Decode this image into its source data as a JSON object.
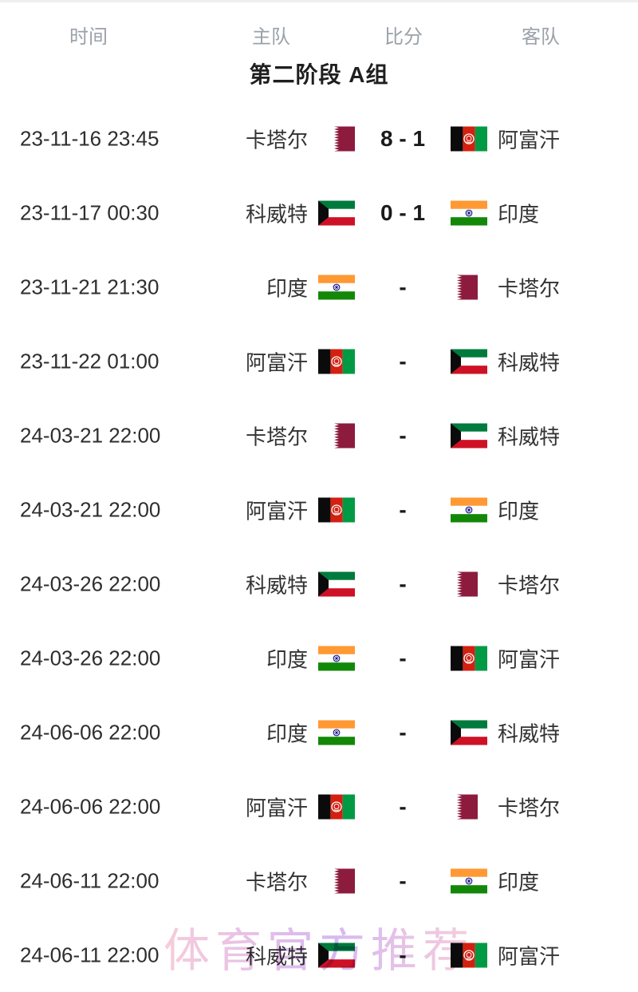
{
  "header": {
    "time": "时间",
    "home": "主队",
    "score": "比分",
    "away": "客队"
  },
  "stage_title": "第二阶段 A组",
  "watermark": "体育官方推荐",
  "matches": [
    {
      "time": "23-11-16 23:45",
      "home": "卡塔尔",
      "home_flag": "qatar",
      "score": "8 - 1",
      "away": "阿富汗",
      "away_flag": "afghanistan"
    },
    {
      "time": "23-11-17 00:30",
      "home": "科威特",
      "home_flag": "kuwait",
      "score": "0 - 1",
      "away": "印度",
      "away_flag": "india"
    },
    {
      "time": "23-11-21 21:30",
      "home": "印度",
      "home_flag": "india",
      "score": "-",
      "away": "卡塔尔",
      "away_flag": "qatar"
    },
    {
      "time": "23-11-22 01:00",
      "home": "阿富汗",
      "home_flag": "afghanistan",
      "score": "-",
      "away": "科威特",
      "away_flag": "kuwait"
    },
    {
      "time": "24-03-21 22:00",
      "home": "卡塔尔",
      "home_flag": "qatar",
      "score": "-",
      "away": "科威特",
      "away_flag": "kuwait"
    },
    {
      "time": "24-03-21 22:00",
      "home": "阿富汗",
      "home_flag": "afghanistan",
      "score": "-",
      "away": "印度",
      "away_flag": "india"
    },
    {
      "time": "24-03-26 22:00",
      "home": "科威特",
      "home_flag": "kuwait",
      "score": "-",
      "away": "卡塔尔",
      "away_flag": "qatar"
    },
    {
      "time": "24-03-26 22:00",
      "home": "印度",
      "home_flag": "india",
      "score": "-",
      "away": "阿富汗",
      "away_flag": "afghanistan"
    },
    {
      "time": "24-06-06 22:00",
      "home": "印度",
      "home_flag": "india",
      "score": "-",
      "away": "科威特",
      "away_flag": "kuwait"
    },
    {
      "time": "24-06-06 22:00",
      "home": "阿富汗",
      "home_flag": "afghanistan",
      "score": "-",
      "away": "卡塔尔",
      "away_flag": "qatar"
    },
    {
      "time": "24-06-11 22:00",
      "home": "卡塔尔",
      "home_flag": "qatar",
      "score": "-",
      "away": "印度",
      "away_flag": "india"
    },
    {
      "time": "24-06-11 22:00",
      "home": "科威特",
      "home_flag": "kuwait",
      "score": "-",
      "away": "阿富汗",
      "away_flag": "afghanistan"
    }
  ],
  "colors": {
    "header_text": "#9aa1a9",
    "body_text": "#333333",
    "score_text": "#1a1a1a",
    "watermark_pink": "#f4bccf",
    "watermark_violet": "#c7a2ec",
    "qatar_maroon": "#8d1b3d",
    "kuwait_green": "#007a3d",
    "kuwait_red": "#ce1126",
    "india_saffron": "#ff9933",
    "india_green": "#138808",
    "india_navy": "#000080",
    "afghan_red": "#d32011",
    "afghan_green": "#009a44"
  }
}
